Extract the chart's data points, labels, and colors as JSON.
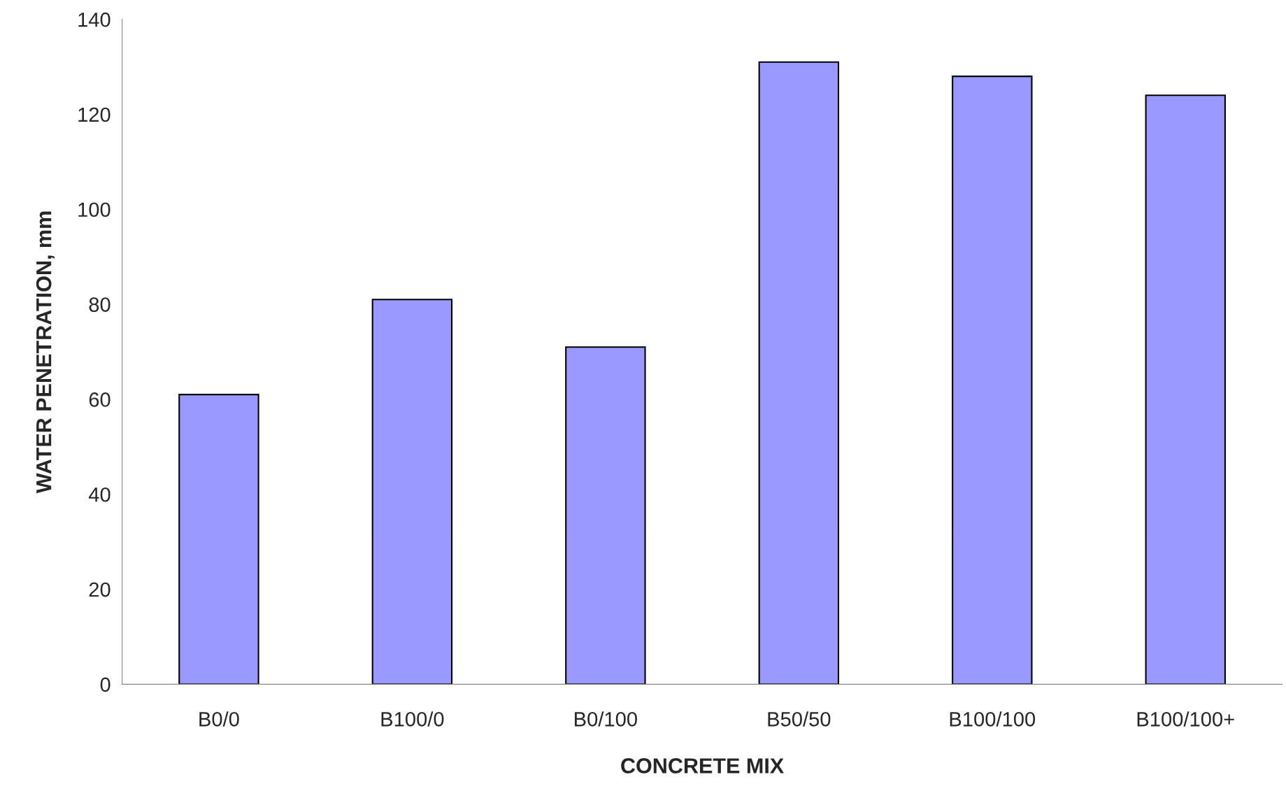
{
  "chart_data": {
    "type": "bar",
    "xlabel": "CONCRETE MIX",
    "ylabel": "WATER PENETRATION, mm",
    "categories": [
      "B0/0",
      "B100/0",
      "B0/100",
      "B50/50",
      "B100/100",
      "B100/100+"
    ],
    "values": [
      61,
      81,
      71,
      131,
      128,
      124
    ],
    "color": "#9999ff",
    "ylim": [
      0,
      140
    ],
    "yticks": [
      0,
      20,
      40,
      60,
      80,
      100,
      120,
      140
    ],
    "grid": false
  }
}
